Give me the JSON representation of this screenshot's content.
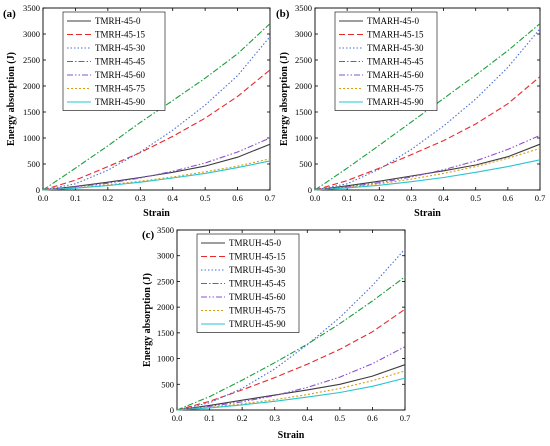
{
  "chart_data": [
    {
      "type": "line",
      "panel_label": "(a)",
      "xlabel": "Strain",
      "ylabel": "Energy absorption (J)",
      "xlim": [
        0.0,
        0.7
      ],
      "ylim": [
        0,
        3500
      ],
      "xticks": [
        "0.0",
        "0.1",
        "0.2",
        "0.3",
        "0.4",
        "0.5",
        "0.6",
        "0.7"
      ],
      "yticks": [
        "0",
        "500",
        "1000",
        "1500",
        "2000",
        "2500",
        "3000",
        "3500"
      ],
      "grid": false,
      "legend_position": "top-left",
      "x": [
        0.0,
        0.1,
        0.2,
        0.3,
        0.4,
        0.5,
        0.6,
        0.7
      ],
      "series": [
        {
          "name": "TMRH-45-0",
          "color": "#3c3c3c",
          "dash": "solid",
          "values": [
            0,
            70,
            150,
            240,
            340,
            460,
            630,
            880
          ]
        },
        {
          "name": "TMRH-45-15",
          "color": "#e8282b",
          "dash": "dashed",
          "values": [
            0,
            190,
            450,
            720,
            1030,
            1380,
            1800,
            2310
          ]
        },
        {
          "name": "TMRH-45-30",
          "color": "#4a6fd8",
          "dash": "dotted",
          "values": [
            0,
            120,
            380,
            730,
            1150,
            1630,
            2200,
            2950
          ]
        },
        {
          "name": "TMRH-45-45",
          "color": "#1a9e3a",
          "dash": "dashdot",
          "values": [
            0,
            420,
            850,
            1300,
            1720,
            2150,
            2620,
            3200
          ]
        },
        {
          "name": "TMRH-45-60",
          "color": "#8c4fd0",
          "dash": "dashdotdot",
          "values": [
            0,
            60,
            130,
            230,
            360,
            520,
            730,
            1000
          ]
        },
        {
          "name": "TMRH-45-75",
          "color": "#d89c12",
          "dash": "shortdot",
          "values": [
            0,
            40,
            100,
            170,
            250,
            350,
            460,
            600
          ]
        },
        {
          "name": "TMRH-45-90",
          "color": "#27c5d0",
          "dash": "solid",
          "values": [
            0,
            35,
            85,
            150,
            230,
            320,
            430,
            560
          ]
        }
      ]
    },
    {
      "type": "line",
      "panel_label": "(b)",
      "xlabel": "Strain",
      "ylabel": "Energy absorption (J)",
      "xlim": [
        0.0,
        0.7
      ],
      "ylim": [
        0,
        3500
      ],
      "xticks": [
        "0.0",
        "0.1",
        "0.2",
        "0.3",
        "0.4",
        "0.5",
        "0.6",
        "0.7"
      ],
      "yticks": [
        "0",
        "500",
        "1000",
        "1500",
        "2000",
        "2500",
        "3000",
        "3500"
      ],
      "grid": false,
      "legend_position": "top-left",
      "x": [
        0.0,
        0.1,
        0.2,
        0.3,
        0.4,
        0.5,
        0.6,
        0.7
      ],
      "series": [
        {
          "name": "TMARH-45-0",
          "color": "#3c3c3c",
          "dash": "solid",
          "values": [
            0,
            80,
            170,
            270,
            370,
            480,
            640,
            880
          ]
        },
        {
          "name": "TMARH-45-15",
          "color": "#e8282b",
          "dash": "dashed",
          "values": [
            0,
            180,
            420,
            680,
            950,
            1270,
            1660,
            2180
          ]
        },
        {
          "name": "TMARH-45-30",
          "color": "#4a6fd8",
          "dash": "dotted",
          "values": [
            0,
            120,
            400,
            780,
            1230,
            1750,
            2360,
            3100
          ]
        },
        {
          "name": "TMARH-45-45",
          "color": "#1a9e3a",
          "dash": "dashdot",
          "values": [
            0,
            420,
            860,
            1310,
            1760,
            2210,
            2680,
            3200
          ]
        },
        {
          "name": "TMARH-45-60",
          "color": "#8c4fd0",
          "dash": "dashdotdot",
          "values": [
            0,
            60,
            140,
            250,
            390,
            560,
            780,
            1050
          ]
        },
        {
          "name": "TMARH-45-75",
          "color": "#d89c12",
          "dash": "shortdot",
          "values": [
            0,
            50,
            120,
            210,
            320,
            450,
            610,
            800
          ]
        },
        {
          "name": "TMARH-45-90",
          "color": "#27c5d0",
          "dash": "solid",
          "values": [
            0,
            40,
            90,
            160,
            240,
            340,
            450,
            580
          ]
        }
      ]
    },
    {
      "type": "line",
      "panel_label": "(c)",
      "xlabel": "Strain",
      "ylabel": "Energy absorption (J)",
      "xlim": [
        0.0,
        0.7
      ],
      "ylim": [
        0,
        3500
      ],
      "xticks": [
        "0.0",
        "0.1",
        "0.2",
        "0.3",
        "0.4",
        "0.5",
        "0.6",
        "0.7"
      ],
      "yticks": [
        "0",
        "500",
        "1000",
        "1500",
        "2000",
        "2500",
        "3000",
        "3500"
      ],
      "grid": false,
      "legend_position": "top-left",
      "x": [
        0.0,
        0.1,
        0.2,
        0.3,
        0.4,
        0.5,
        0.6,
        0.7
      ],
      "series": [
        {
          "name": "TMRUH-45-0",
          "color": "#3c3c3c",
          "dash": "solid",
          "values": [
            0,
            90,
            190,
            290,
            390,
            500,
            660,
            880
          ]
        },
        {
          "name": "TMRUH-45-15",
          "color": "#e8282b",
          "dash": "dashed",
          "values": [
            0,
            170,
            390,
            630,
            890,
            1180,
            1520,
            1960
          ]
        },
        {
          "name": "TMRUH-45-30",
          "color": "#4a6fd8",
          "dash": "dotted",
          "values": [
            0,
            140,
            420,
            800,
            1270,
            1800,
            2420,
            3130
          ]
        },
        {
          "name": "TMRUH-45-45",
          "color": "#1a9e3a",
          "dash": "dashdot",
          "values": [
            0,
            260,
            580,
            920,
            1280,
            1680,
            2120,
            2590
          ]
        },
        {
          "name": "TMRUH-45-60",
          "color": "#8c4fd0",
          "dash": "dashdotdot",
          "values": [
            0,
            70,
            160,
            280,
            440,
            640,
            900,
            1230
          ]
        },
        {
          "name": "TMRUH-45-75",
          "color": "#d89c12",
          "dash": "shortdot",
          "values": [
            0,
            50,
            120,
            200,
            300,
            420,
            570,
            760
          ]
        },
        {
          "name": "TMRUH-45-90",
          "color": "#27c5d0",
          "dash": "solid",
          "values": [
            0,
            40,
            100,
            170,
            250,
            340,
            460,
            620
          ]
        }
      ]
    }
  ]
}
